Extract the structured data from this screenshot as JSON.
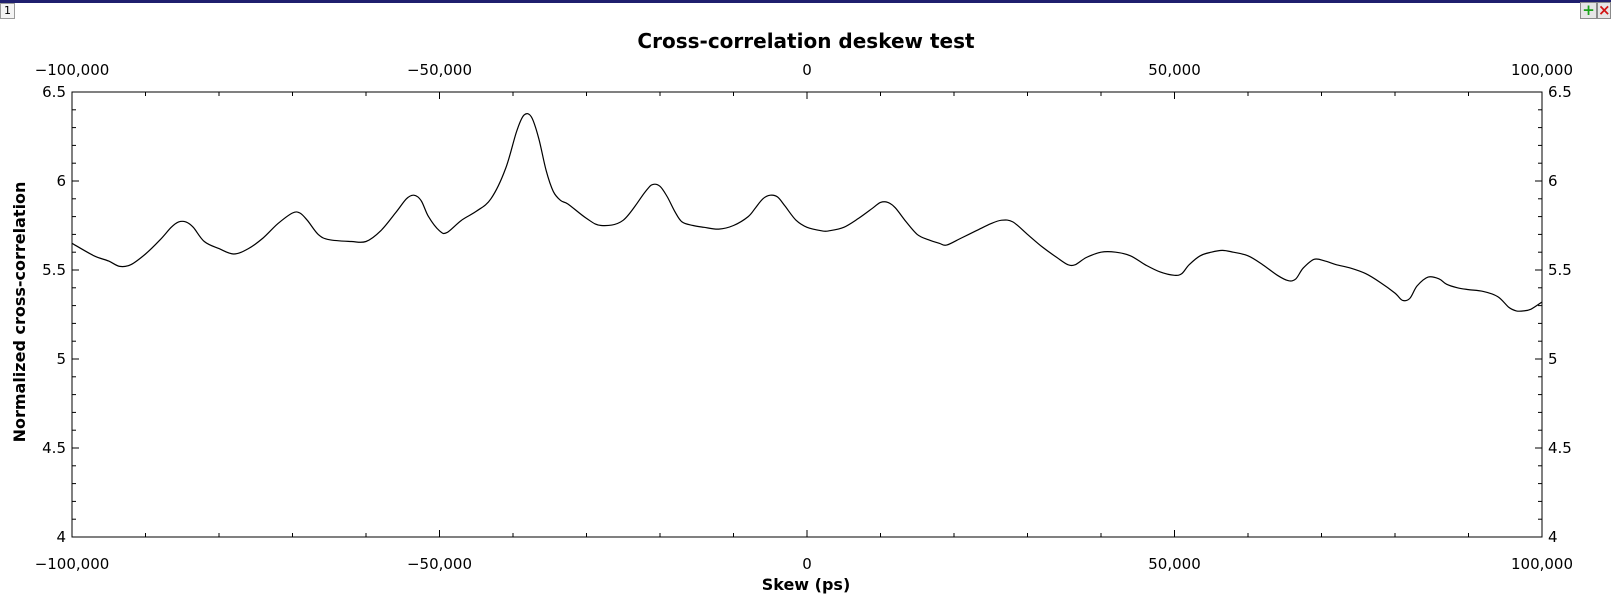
{
  "window": {
    "tab_number": "1",
    "add_icon": "plus-icon",
    "close_icon": "close-icon",
    "add_color": "#1aa31a",
    "close_color": "#d11414"
  },
  "chart_data": {
    "type": "line",
    "title": "Cross-correlation deskew test",
    "xlabel": "Skew (ps)",
    "ylabel": "Normalized cross-correlation",
    "xlim": [
      -100000,
      100000
    ],
    "ylim": [
      4,
      6.5
    ],
    "x_ticks": [
      -100000,
      -50000,
      0,
      50000,
      100000
    ],
    "x_tick_labels": [
      "−100,000",
      "−50,000",
      "0",
      "50,000",
      "100,000"
    ],
    "y_ticks": [
      4,
      4.5,
      5,
      5.5,
      6,
      6.5
    ],
    "y_tick_labels": [
      "4",
      "4.5",
      "5",
      "5.5",
      "6",
      "6.5"
    ],
    "grid": false,
    "line_color": "#000000",
    "series": [
      {
        "x": [
          -100000,
          -97000,
          -95000,
          -93500,
          -92000,
          -90000,
          -88000,
          -86500,
          -85500,
          -84500,
          -83500,
          -82000,
          -80000,
          -78000,
          -76000,
          -74000,
          -72000,
          -70000,
          -69000,
          -68000,
          -66500,
          -65000,
          -62000,
          -60000,
          -58000,
          -56000,
          -54500,
          -53500,
          -52500,
          -51500,
          -50000,
          -49000,
          -47000,
          -45000,
          -43000,
          -41000,
          -39500,
          -38500,
          -37500,
          -36500,
          -35500,
          -34500,
          -33500,
          -32500,
          -30000,
          -28000,
          -25000,
          -22000,
          -21000,
          -20000,
          -19000,
          -18000,
          -17000,
          -15500,
          -14000,
          -12000,
          -10000,
          -8000,
          -7000,
          -6000,
          -5000,
          -4000,
          -3000,
          -1500,
          0,
          2000,
          3000,
          5000,
          7000,
          9000,
          10000,
          11000,
          12000,
          13500,
          15000,
          16500,
          18000,
          19000,
          21000,
          23000,
          25000,
          26500,
          28000,
          30000,
          32000,
          34000,
          35500,
          36500,
          38000,
          40000,
          42000,
          44000,
          46000,
          48000,
          50000,
          51000,
          52000,
          53500,
          55000,
          56500,
          58000,
          60000,
          62000,
          64000,
          65500,
          66500,
          67500,
          69000,
          70500,
          72000,
          74000,
          76000,
          78000,
          80000,
          81000,
          82000,
          83000,
          84500,
          86000,
          87000,
          88500,
          90000,
          92000,
          94000,
          95500,
          96500,
          97500,
          98500,
          100000
        ],
        "y": [
          5.65,
          5.58,
          5.55,
          5.52,
          5.53,
          5.59,
          5.67,
          5.74,
          5.77,
          5.77,
          5.74,
          5.66,
          5.62,
          5.59,
          5.62,
          5.68,
          5.76,
          5.82,
          5.82,
          5.78,
          5.7,
          5.67,
          5.66,
          5.66,
          5.72,
          5.82,
          5.9,
          5.92,
          5.89,
          5.8,
          5.72,
          5.71,
          5.78,
          5.83,
          5.9,
          6.07,
          6.28,
          6.37,
          6.36,
          6.24,
          6.06,
          5.94,
          5.89,
          5.87,
          5.79,
          5.75,
          5.78,
          5.94,
          5.98,
          5.97,
          5.91,
          5.83,
          5.77,
          5.75,
          5.74,
          5.73,
          5.75,
          5.8,
          5.85,
          5.9,
          5.92,
          5.91,
          5.86,
          5.78,
          5.74,
          5.72,
          5.72,
          5.74,
          5.79,
          5.85,
          5.88,
          5.88,
          5.85,
          5.77,
          5.7,
          5.67,
          5.65,
          5.64,
          5.68,
          5.72,
          5.76,
          5.78,
          5.77,
          5.7,
          5.63,
          5.57,
          5.53,
          5.53,
          5.57,
          5.6,
          5.6,
          5.58,
          5.53,
          5.49,
          5.47,
          5.48,
          5.53,
          5.58,
          5.6,
          5.61,
          5.6,
          5.58,
          5.53,
          5.47,
          5.44,
          5.45,
          5.51,
          5.56,
          5.55,
          5.53,
          5.51,
          5.48,
          5.43,
          5.37,
          5.33,
          5.34,
          5.41,
          5.46,
          5.45,
          5.42,
          5.4,
          5.39,
          5.38,
          5.35,
          5.29,
          5.27,
          5.27,
          5.28,
          5.32
        ]
      }
    ]
  }
}
